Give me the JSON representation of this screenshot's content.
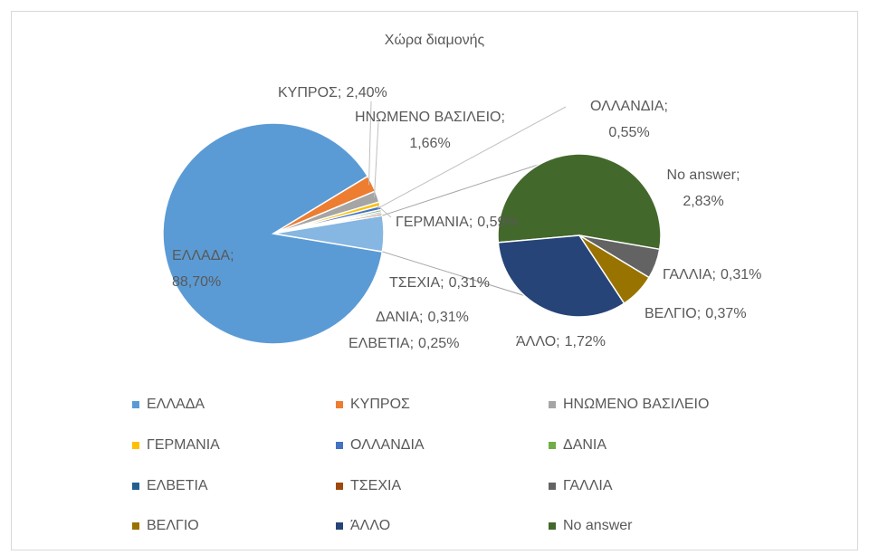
{
  "chart_data": {
    "type": "pie-of-pie",
    "title": "Χώρα διαμονής",
    "categories": [
      "ΕΛΛΑΔΑ",
      "ΚΥΠΡΟΣ",
      "ΗΝΩΜΕΝΟ ΒΑΣΙΛΕΙΟ",
      "ΓΕΡΜΑΝΙΑ",
      "ΟΛΛΑΝΔΙΑ",
      "ΔΑΝΙΑ",
      "ΕΛΒΕΤΙΑ",
      "ΤΣΕΧΙΑ",
      "ΓΑΛΛΙΑ",
      "ΒΕΛΓΙΟ",
      "ΆΛΛΟ",
      "No answer"
    ],
    "values": [
      88.7,
      2.4,
      1.66,
      0.59,
      0.55,
      0.31,
      0.25,
      0.31,
      0.31,
      0.37,
      1.72,
      2.83
    ],
    "value_labels": [
      "88,70%",
      "2,40%",
      "1,66%",
      "0,59%",
      "0,55%",
      "0,31%",
      "0,25%",
      "0,31%",
      "0,31%",
      "0,37%",
      "1,72%",
      "2,83%"
    ],
    "label_separator": ";",
    "colors": [
      "#5b9bd5",
      "#ed7d31",
      "#a5a5a5",
      "#ffc000",
      "#4472c4",
      "#70ad47",
      "#255e91",
      "#9e480e",
      "#636363",
      "#997300",
      "#264478",
      "#43682b"
    ],
    "other_color": "#86b6e2",
    "secondary_count": 4,
    "legend": "bottom"
  }
}
